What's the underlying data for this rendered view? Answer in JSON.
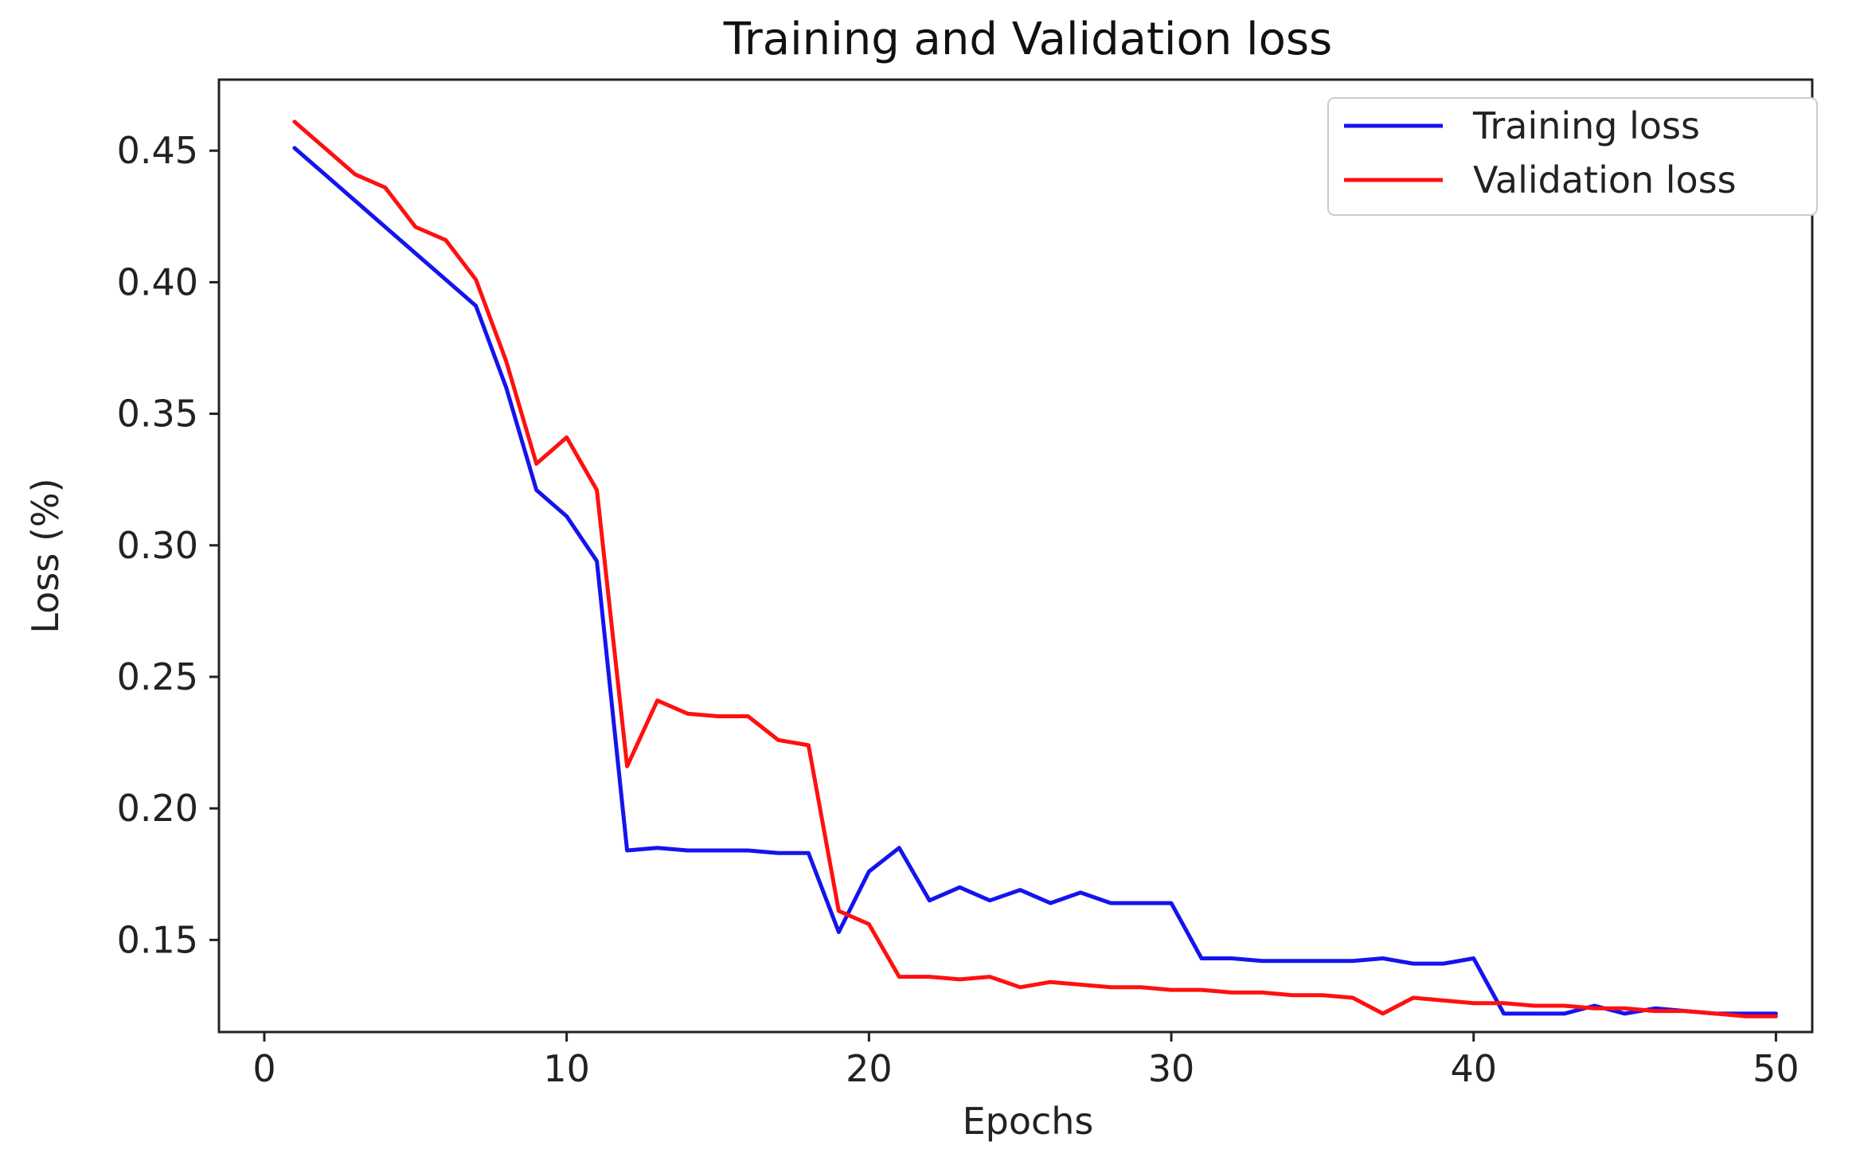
{
  "chart_data": {
    "type": "line",
    "title": "Training and Validation loss",
    "xlabel": "Epochs",
    "ylabel": "Loss (%)",
    "xlim": [
      -1.5,
      51.2
    ],
    "ylim": [
      0.115,
      0.477
    ],
    "xticks": [
      0,
      10,
      20,
      30,
      40,
      50
    ],
    "xtick_labels": [
      "0",
      "10",
      "20",
      "30",
      "40",
      "50"
    ],
    "yticks": [
      0.15,
      0.2,
      0.25,
      0.3,
      0.35,
      0.4,
      0.45
    ],
    "ytick_labels": [
      "0.15",
      "0.20",
      "0.25",
      "0.30",
      "0.35",
      "0.40",
      "0.45"
    ],
    "grid": false,
    "legend_position": "top-right",
    "x": [
      1,
      2,
      3,
      4,
      5,
      6,
      7,
      8,
      9,
      10,
      11,
      12,
      13,
      14,
      15,
      16,
      17,
      18,
      19,
      20,
      21,
      22,
      23,
      24,
      25,
      26,
      27,
      28,
      29,
      30,
      31,
      32,
      33,
      34,
      35,
      36,
      37,
      38,
      39,
      40,
      41,
      42,
      43,
      44,
      45,
      46,
      47,
      48,
      49,
      50
    ],
    "series": [
      {
        "name": "Training loss",
        "color": "#1414ee",
        "values": [
          0.451,
          0.441,
          0.431,
          0.421,
          0.411,
          0.401,
          0.391,
          0.36,
          0.321,
          0.311,
          0.294,
          0.184,
          0.185,
          0.184,
          0.184,
          0.184,
          0.183,
          0.183,
          0.153,
          0.176,
          0.185,
          0.165,
          0.17,
          0.165,
          0.169,
          0.164,
          0.168,
          0.164,
          0.164,
          0.164,
          0.143,
          0.143,
          0.142,
          0.142,
          0.142,
          0.142,
          0.143,
          0.141,
          0.141,
          0.143,
          0.122,
          0.122,
          0.122,
          0.125,
          0.122,
          0.124,
          0.123,
          0.122,
          0.122,
          0.122
        ]
      },
      {
        "name": "Validation loss",
        "color": "#ff1010",
        "values": [
          0.461,
          0.451,
          0.441,
          0.436,
          0.421,
          0.416,
          0.401,
          0.37,
          0.331,
          0.341,
          0.321,
          0.216,
          0.241,
          0.236,
          0.235,
          0.235,
          0.226,
          0.224,
          0.161,
          0.156,
          0.136,
          0.136,
          0.135,
          0.136,
          0.132,
          0.134,
          0.133,
          0.132,
          0.132,
          0.131,
          0.131,
          0.13,
          0.13,
          0.129,
          0.129,
          0.128,
          0.122,
          0.128,
          0.127,
          0.126,
          0.126,
          0.125,
          0.125,
          0.124,
          0.124,
          0.123,
          0.123,
          0.122,
          0.121,
          0.121
        ]
      }
    ]
  }
}
